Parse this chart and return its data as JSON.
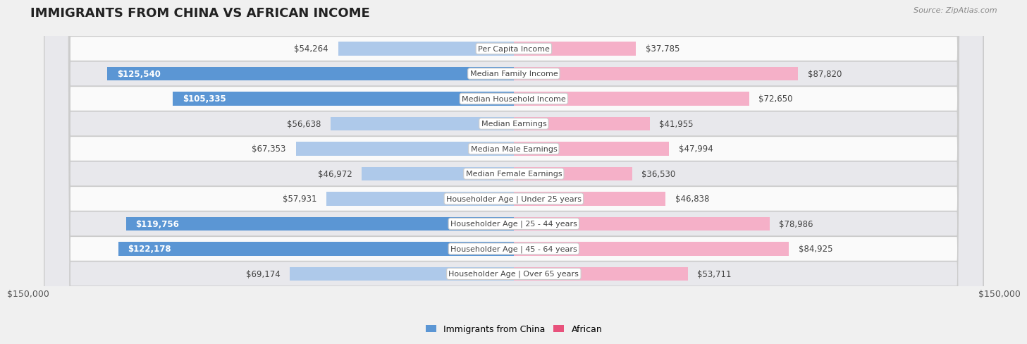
{
  "title": "IMMIGRANTS FROM CHINA VS AFRICAN INCOME",
  "source": "Source: ZipAtlas.com",
  "categories": [
    "Per Capita Income",
    "Median Family Income",
    "Median Household Income",
    "Median Earnings",
    "Median Male Earnings",
    "Median Female Earnings",
    "Householder Age | Under 25 years",
    "Householder Age | 25 - 44 years",
    "Householder Age | 45 - 64 years",
    "Householder Age | Over 65 years"
  ],
  "china_values": [
    54264,
    125540,
    105335,
    56638,
    67353,
    46972,
    57931,
    119756,
    122178,
    69174
  ],
  "african_values": [
    37785,
    87820,
    72650,
    41955,
    47994,
    36530,
    46838,
    78986,
    84925,
    53711
  ],
  "china_color_light": "#aec9ea",
  "china_color_dark": "#5b96d4",
  "african_color_light": "#f5b0c8",
  "african_color_dark": "#e8527c",
  "max_val": 150000,
  "xlabel_left": "$150,000",
  "xlabel_right": "$150,000",
  "legend_china": "Immigrants from China",
  "legend_african": "African",
  "bg_color": "#f0f0f0",
  "row_bg_light": "#fafafa",
  "row_bg_dark": "#e8e8ec",
  "dark_threshold": 90000,
  "title_fontsize": 13,
  "label_fontsize": 8.5,
  "value_fontsize": 8.5
}
